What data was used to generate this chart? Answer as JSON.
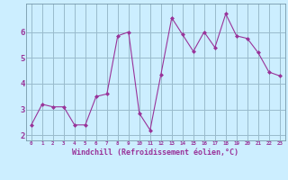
{
  "x": [
    0,
    1,
    2,
    3,
    4,
    5,
    6,
    7,
    8,
    9,
    10,
    11,
    12,
    13,
    14,
    15,
    16,
    17,
    18,
    19,
    20,
    21,
    22,
    23
  ],
  "y": [
    2.4,
    3.2,
    3.1,
    3.1,
    2.4,
    2.4,
    3.5,
    3.6,
    5.85,
    6.0,
    2.85,
    2.2,
    4.35,
    6.55,
    5.9,
    5.25,
    6.0,
    5.4,
    6.7,
    5.85,
    5.75,
    5.2,
    4.45,
    4.3
  ],
  "line_color": "#993399",
  "marker": "D",
  "marker_size": 2,
  "bg_color": "#cceeff",
  "grid_color": "#99bbcc",
  "xlabel": "Windchill (Refroidissement éolien,°C)",
  "xlabel_color": "#993399",
  "tick_color": "#993399",
  "ylabel_ticks": [
    2,
    3,
    4,
    5,
    6
  ],
  "xlim": [
    -0.5,
    23.5
  ],
  "ylim": [
    1.8,
    7.1
  ],
  "xtick_labels": [
    "0",
    "1",
    "2",
    "3",
    "4",
    "5",
    "6",
    "7",
    "8",
    "9",
    "10",
    "11",
    "12",
    "13",
    "14",
    "15",
    "16",
    "17",
    "18",
    "19",
    "20",
    "21",
    "22",
    "23"
  ]
}
